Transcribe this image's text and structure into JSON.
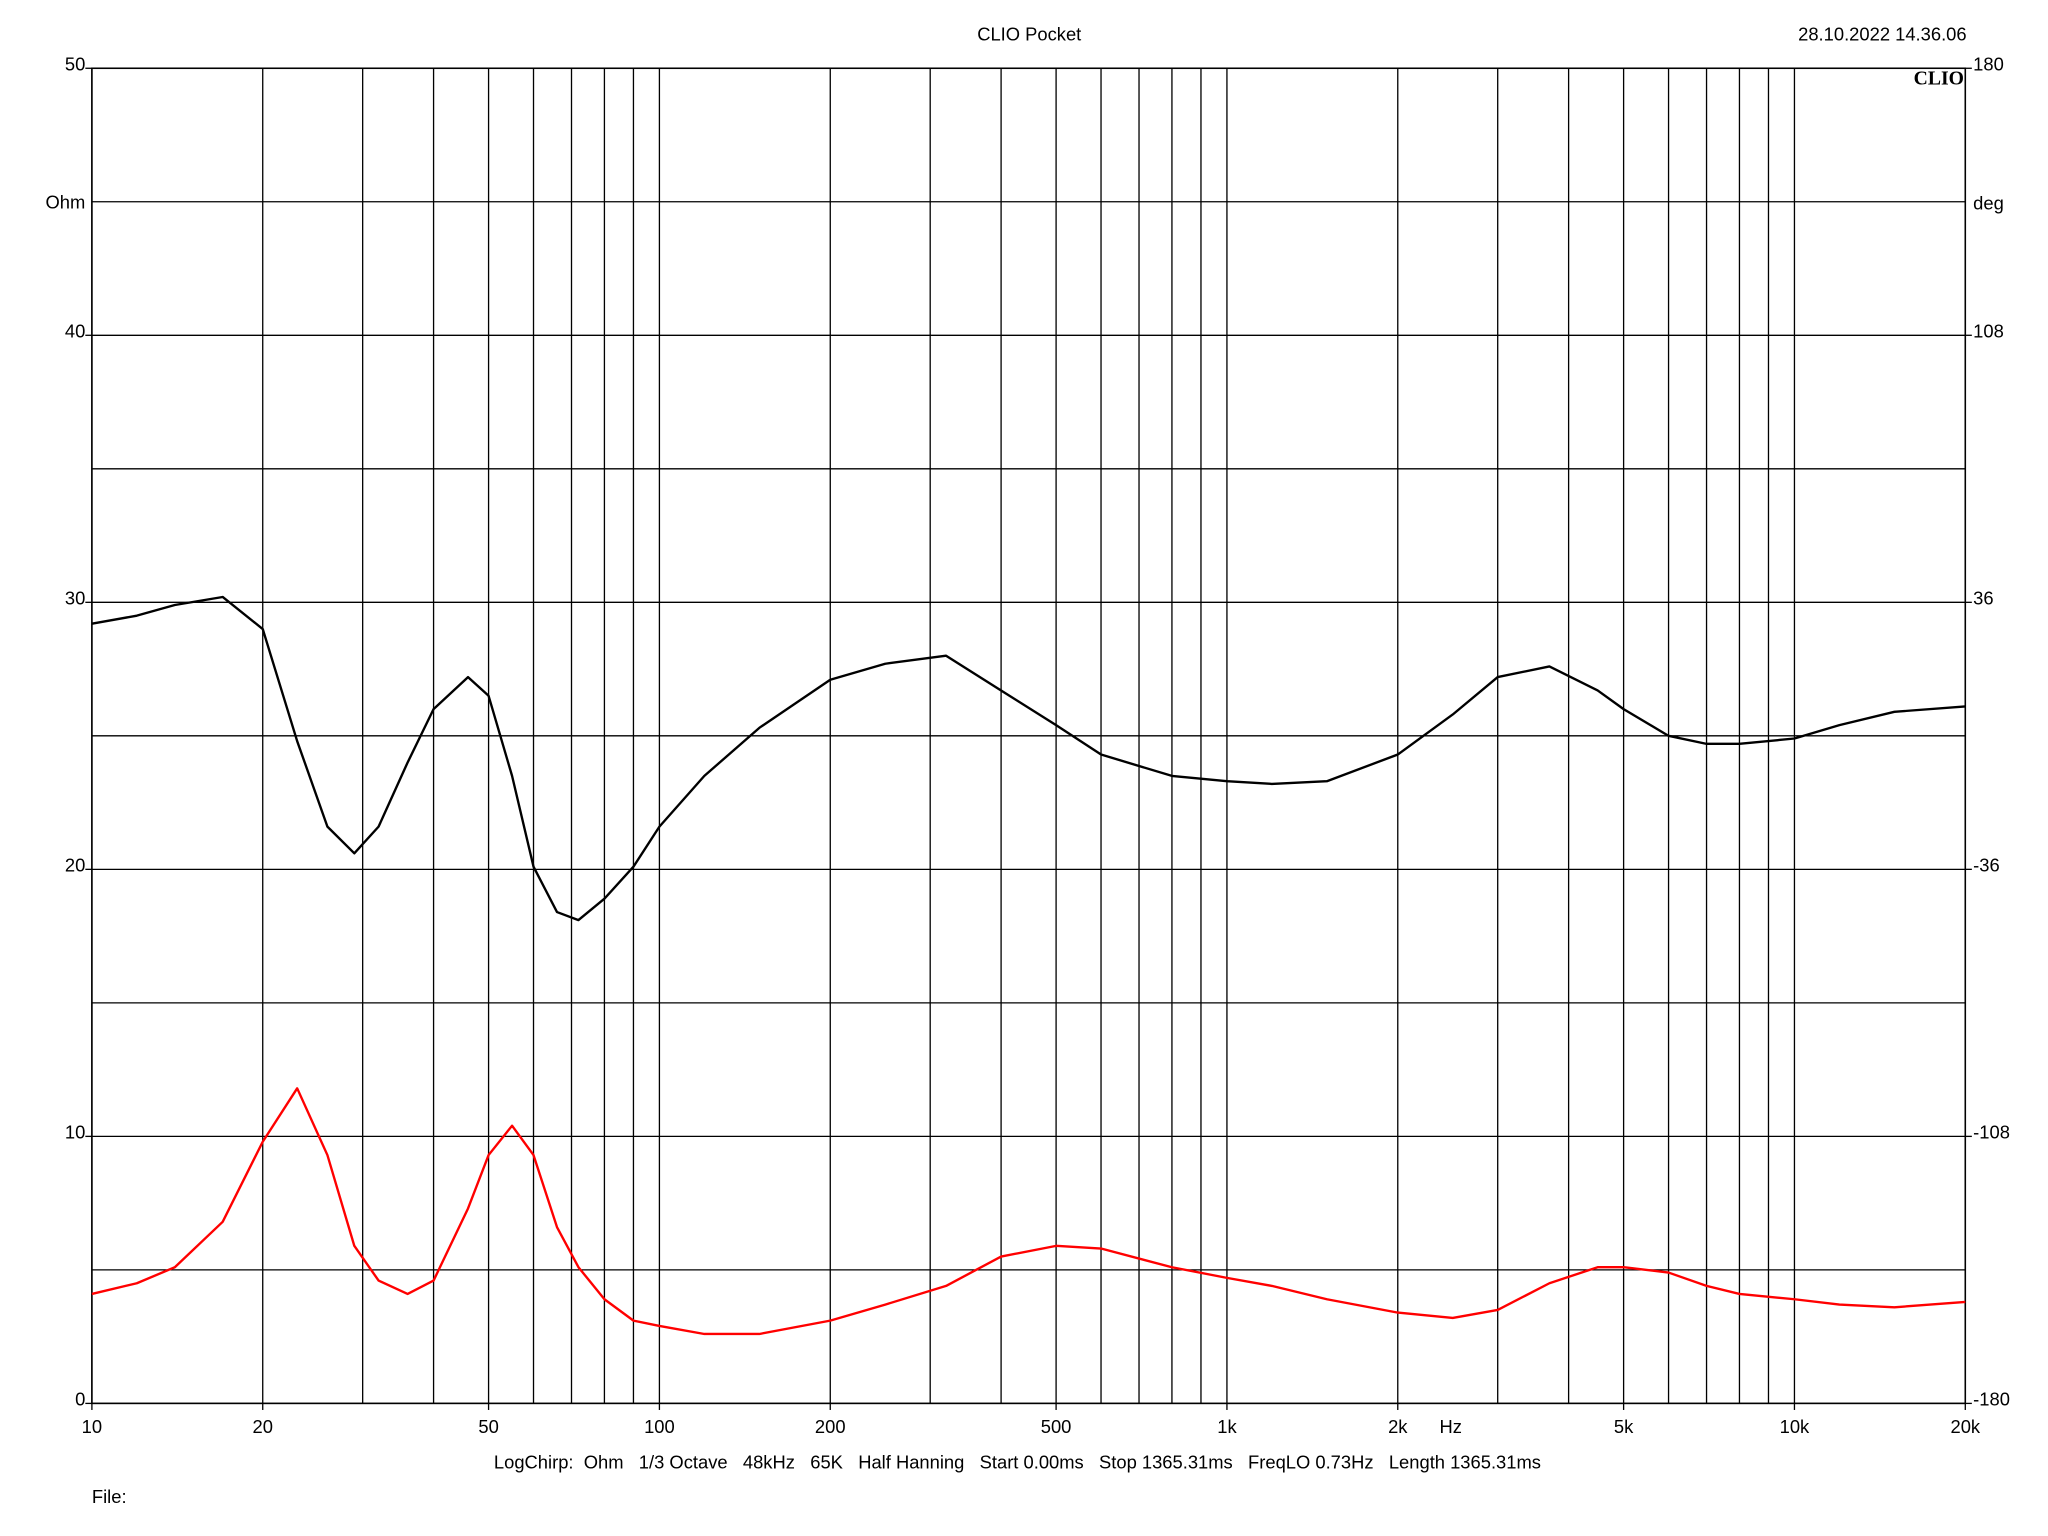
{
  "chart_data": {
    "type": "line",
    "title": "CLIO Pocket",
    "timestamp": "28.10.2022 14.36.06",
    "logo": "CLIO",
    "ylabel": "Ohm",
    "y2label": "deg",
    "xlabel": "Hz",
    "footer": "LogChirp:  Ohm   1/3 Octave   48kHz   65K   Half Hanning   Start 0.00ms   Stop 1365.31ms   FreqLO 0.73Hz   Length 1365.31ms",
    "file_label": "File:",
    "xscale": "log",
    "grid": true,
    "xlim": [
      10,
      20000
    ],
    "xticks": [
      10,
      20,
      50,
      100,
      200,
      500,
      {
        "value": 1000,
        "label": "1k"
      },
      {
        "value": 2000,
        "label": "2k"
      },
      {
        "value": 5000,
        "label": "5k"
      },
      {
        "value": 10000,
        "label": "10k"
      },
      {
        "value": 20000,
        "label": "20k"
      }
    ],
    "xgrid": [
      10,
      20,
      30,
      40,
      50,
      60,
      70,
      80,
      90,
      100,
      200,
      300,
      400,
      500,
      600,
      700,
      800,
      900,
      1000,
      2000,
      3000,
      4000,
      5000,
      6000,
      7000,
      8000,
      9000,
      10000,
      20000
    ],
    "ylim": [
      0,
      50
    ],
    "yticks": [
      0,
      10,
      20,
      30,
      40,
      50
    ],
    "ygrid": [
      0,
      5,
      10,
      15,
      20,
      25,
      30,
      35,
      40,
      45,
      50
    ],
    "y2lim": [
      -180,
      180
    ],
    "y2ticks": [
      -180,
      -108,
      -36,
      36,
      108,
      180
    ],
    "x": [
      10,
      12,
      14,
      17,
      20,
      23,
      26,
      29,
      32,
      36,
      40,
      46,
      50,
      55,
      60,
      66,
      72,
      80,
      90,
      100,
      120,
      150,
      200,
      250,
      320,
      400,
      500,
      600,
      800,
      1000,
      1200,
      1500,
      2000,
      2500,
      3000,
      3700,
      4500,
      5000,
      6000,
      7000,
      8000,
      10000,
      12000,
      15000,
      20000
    ],
    "series": [
      {
        "color": "#000000",
        "values": [
          29.2,
          29.5,
          29.9,
          30.2,
          29.0,
          24.8,
          21.6,
          20.6,
          21.6,
          24.0,
          26.0,
          27.2,
          26.5,
          23.5,
          20.1,
          18.4,
          18.1,
          18.9,
          20.1,
          21.6,
          23.5,
          25.3,
          27.1,
          27.7,
          28.0,
          26.7,
          25.4,
          24.3,
          23.5,
          23.3,
          23.2,
          23.3,
          24.3,
          25.8,
          27.2,
          27.6,
          26.7,
          26.0,
          25.0,
          24.7,
          24.7,
          24.9,
          25.4,
          25.9,
          26.1
        ]
      },
      {
        "color": "#ff0000",
        "values": [
          4.1,
          4.5,
          5.1,
          6.8,
          9.8,
          11.8,
          9.3,
          5.9,
          4.6,
          4.1,
          4.6,
          7.3,
          9.3,
          10.4,
          9.3,
          6.6,
          5.1,
          3.9,
          3.1,
          2.9,
          2.6,
          2.6,
          3.1,
          3.7,
          4.4,
          5.5,
          5.9,
          5.8,
          5.1,
          4.7,
          4.4,
          3.9,
          3.4,
          3.2,
          3.5,
          4.5,
          5.1,
          5.1,
          4.9,
          4.4,
          4.1,
          3.9,
          3.7,
          3.6,
          3.8
        ]
      }
    ]
  }
}
